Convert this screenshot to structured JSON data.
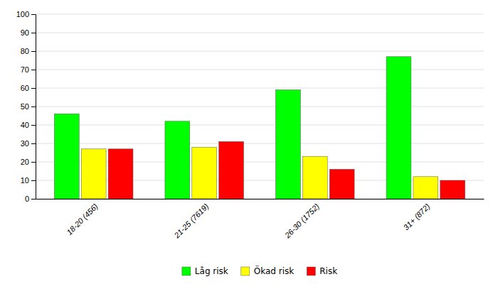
{
  "chart_data": {
    "type": "bar",
    "categories": [
      "18-20 (456)",
      "21-25 (7619)",
      "26-30 (1752)",
      "31+ (872)"
    ],
    "series": [
      {
        "name": "Låg risk",
        "color": "#00ff00",
        "values": [
          46,
          42,
          59,
          77
        ]
      },
      {
        "name": "Ökad risk",
        "color": "#ffff00",
        "values": [
          27,
          28,
          23,
          12
        ]
      },
      {
        "name": "Risk",
        "color": "#ff0000",
        "values": [
          27,
          31,
          16,
          10
        ]
      }
    ],
    "ylim": [
      0,
      100
    ],
    "yticks": [
      0,
      10,
      20,
      30,
      40,
      50,
      60,
      70,
      80,
      90,
      100
    ],
    "grid": true,
    "legend": "bottom"
  }
}
